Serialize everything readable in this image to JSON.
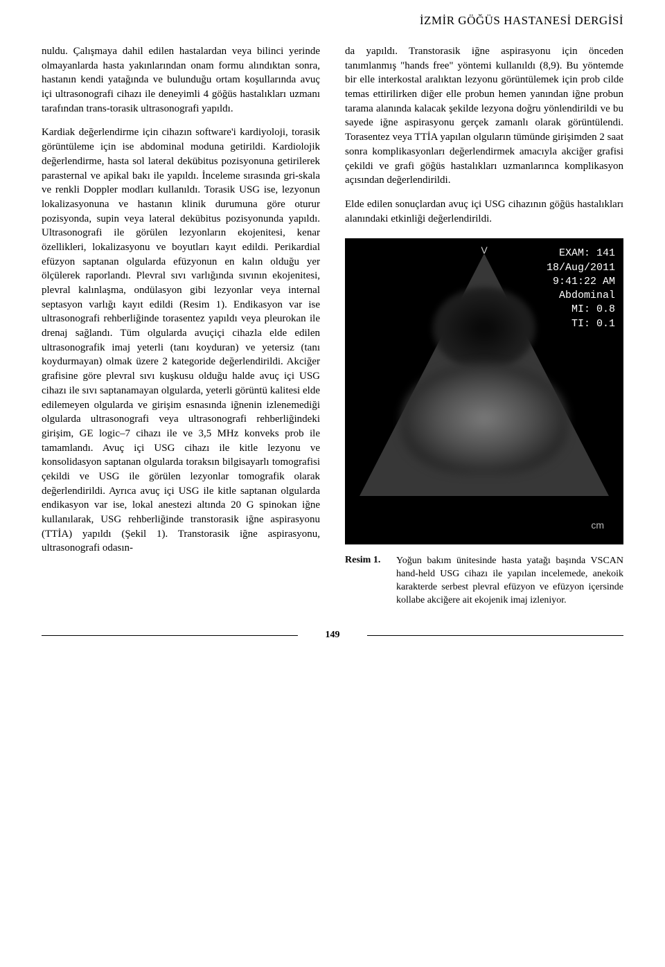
{
  "header": {
    "journal": "İZMİR GÖĞÜS HASTANESİ DERGİSİ"
  },
  "left_column": {
    "p1": "nuldu. Çalışmaya dahil edilen hastalardan veya bilinci yerinde olmayanlarda hasta yakınlarından onam formu alındıktan sonra, hastanın kendi yatağında ve bulunduğu ortam koşullarında avuç içi ultrasonografi cihazı ile deneyimli 4 göğüs hastalıkları uzmanı tarafından trans-torasik ultrasonografi yapıldı.",
    "p2": "Kardiak değerlendirme için cihazın software'i kardiyoloji, torasik görüntüleme için ise abdominal moduna getirildi. Kardiolojik değerlendirme, hasta sol lateral dekübitus pozisyonuna getirilerek parasternal ve apikal bakı ile yapıldı. İnceleme sırasında gri-skala ve renkli Doppler modları kullanıldı. Torasik USG ise, lezyonun lokalizasyonuna ve hastanın klinik durumuna göre oturur pozisyonda, supin veya lateral dekübitus pozisyonunda yapıldı. Ultrasonografi ile görülen lezyonların ekojenitesi, kenar özellikleri, lokalizasyonu ve boyutları kayıt edildi. Perikardial efüzyon saptanan olgularda efüzyonun en kalın olduğu yer ölçülerek raporlandı. Plevral sıvı varlığında sıvının ekojenitesi, plevral kalınlaşma, ondülasyon gibi lezyonlar veya internal septasyon varlığı kayıt edildi (Resim 1). Endikasyon var ise ultrasonografi rehberliğinde torasentez yapıldı veya pleurokan ile drenaj sağlandı. Tüm olgularda avuçiçi cihazla elde edilen ultrasonografik imaj yeterli (tanı koyduran) ve yetersiz (tanı koydurmayan) olmak üzere 2 kategoride değerlendirildi. Akciğer grafisine göre plevral sıvı kuşkusu olduğu halde avuç içi USG cihazı ile sıvı saptanamayan olgularda, yeterli görüntü kalitesi elde edilemeyen olgularda ve girişim esnasında iğnenin izlenemediği olgularda ultrasonografi veya ultrasonografi rehberliğindeki girişim, GE logic–7 cihazı ile ve 3,5 MHz konveks prob ile tamamlandı. Avuç içi USG cihazı ile kitle lezyonu ve konsolidasyon saptanan olgularda toraksın bilgisayarlı tomografisi çekildi ve USG ile görülen lezyonlar tomografik olarak değerlendirildi. Ayrıca avuç içi USG ile kitle saptanan olgularda endikasyon var ise, lokal anestezi altında 20 G spinokan iğne kullanılarak, USG rehberliğinde transtorasik iğne aspirasyonu (TTİA) yapıldı (Şekil 1). Transtorasik iğne aspirasyonu, ultrasonografi odasın-"
  },
  "right_column": {
    "p1": "da yapıldı. Transtorasik iğne aspirasyonu için önceden tanımlanmış \"hands free\" yöntemi kullanıldı (8,9). Bu yöntemde bir elle interkostal aralıktan lezyonu görüntülemek için prob cilde temas ettirilirken diğer elle probun hemen yanından iğne probun tarama alanında kalacak şekilde lezyona doğru yönlendirildi ve bu sayede iğne aspirasyonu gerçek zamanlı olarak görüntülendi. Torasentez veya TTİA yapılan olguların tümünde girişimden 2 saat sonra komplikasyonları değerlendirmek amacıyla akciğer grafisi çekildi ve grafi göğüs hastalıkları uzmanlarınca komplikasyon açısından değerlendirildi.",
    "p2": "Elde edilen sonuçlardan avuç içi USG cihazının göğüs hastalıkları alanındaki etkinliği değerlendirildi."
  },
  "ultrasound": {
    "top_marker": "V",
    "overlay": {
      "exam": "EXAM: 141",
      "date": "18/Aug/2011",
      "time": "9:41:22 AM",
      "mode": "Abdominal",
      "mi": "MI: 0.8",
      "ti": "TI: 0.1"
    },
    "scale_label": "cm"
  },
  "caption": {
    "label": "Resim 1.",
    "text": "Yoğun bakım ünitesinde hasta yatağı başında VSCAN hand-held USG cihazı ile yapılan incelemede, anekoik karakterde serbest plevral efüzyon ve efüzyon içersinde kollabe akciğere ait ekojenik imaj izleniyor."
  },
  "footer": {
    "page": "149"
  }
}
